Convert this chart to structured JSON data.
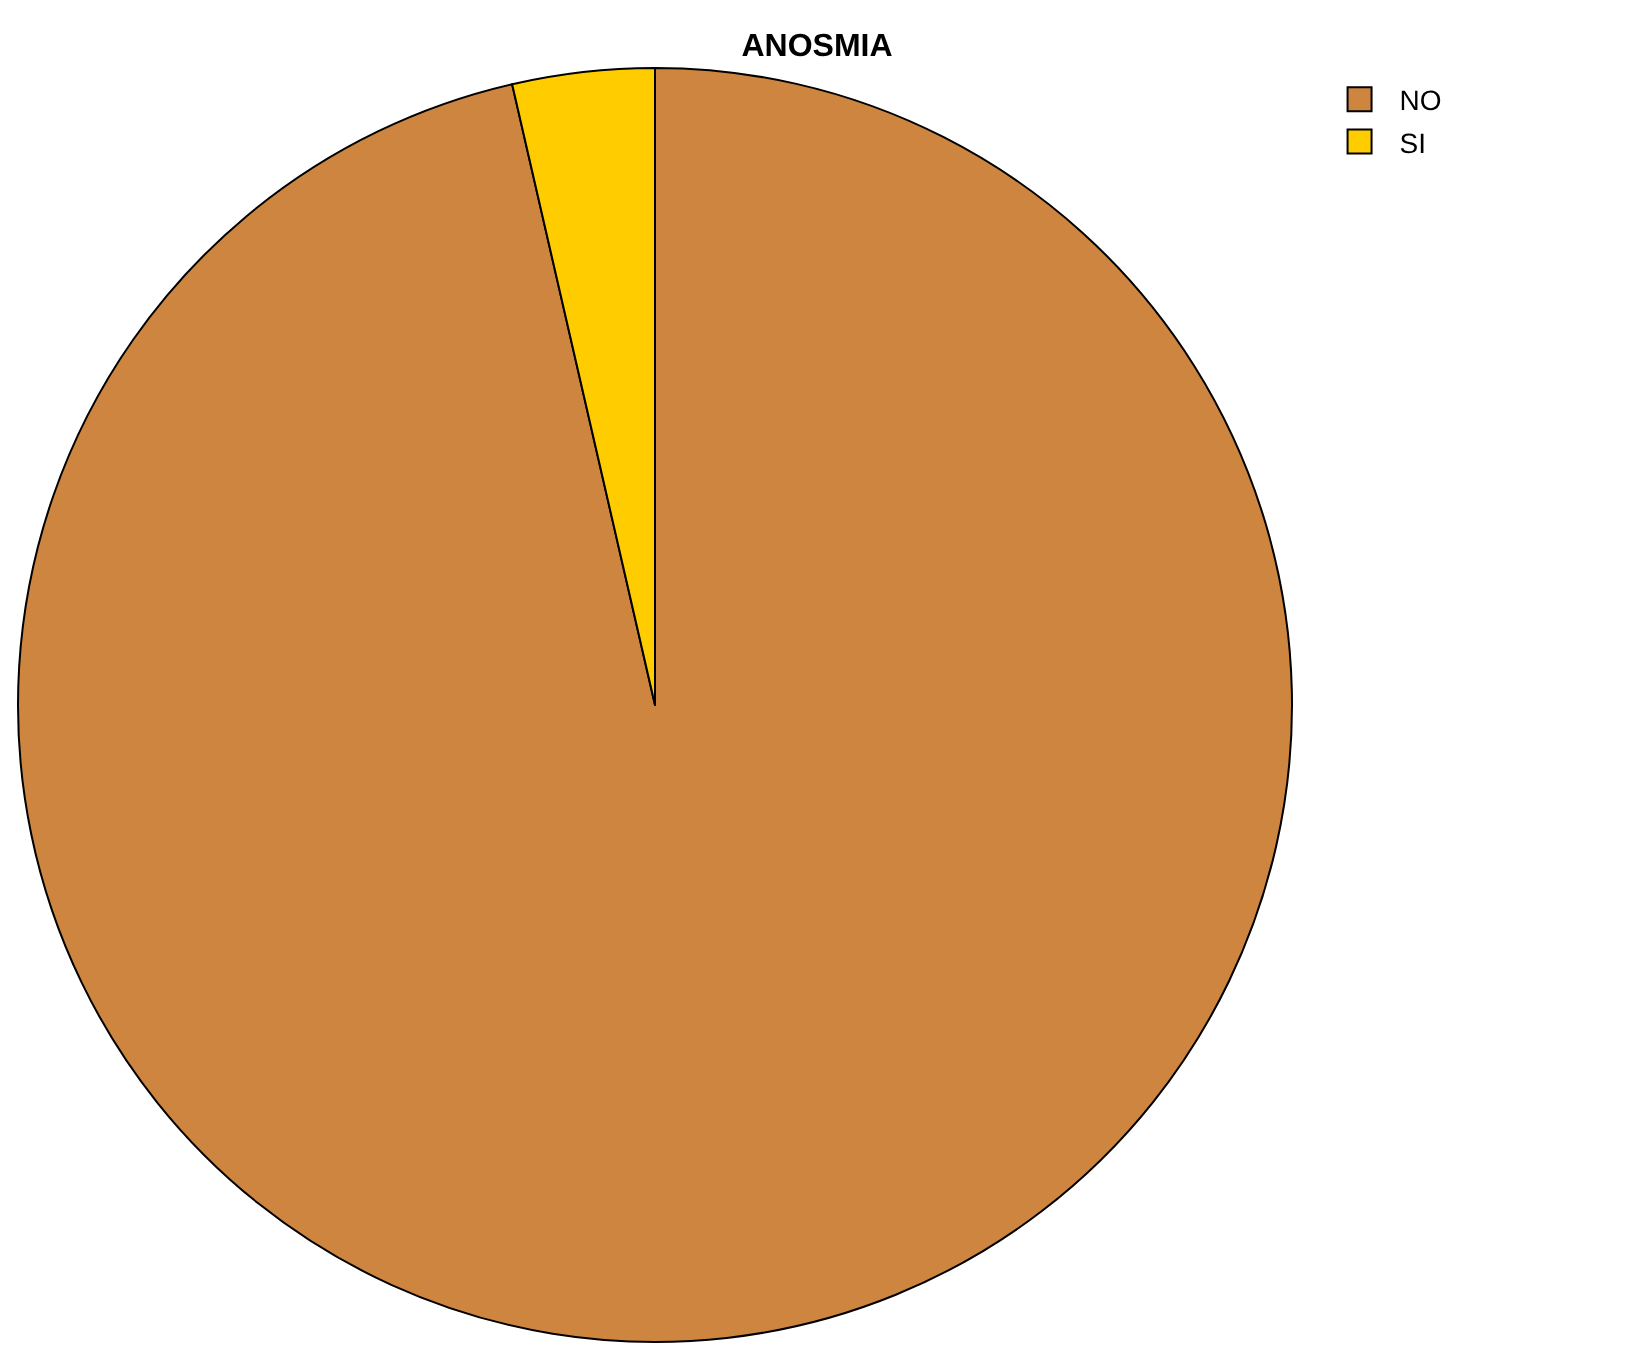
{
  "chart_data": {
    "type": "pie",
    "title": "ANOSMIA",
    "categories": [
      "NO",
      "SI"
    ],
    "values": [
      96.4,
      3.6
    ],
    "colors": [
      "#cd853f",
      "#ffcc00"
    ],
    "legend": "top right"
  }
}
